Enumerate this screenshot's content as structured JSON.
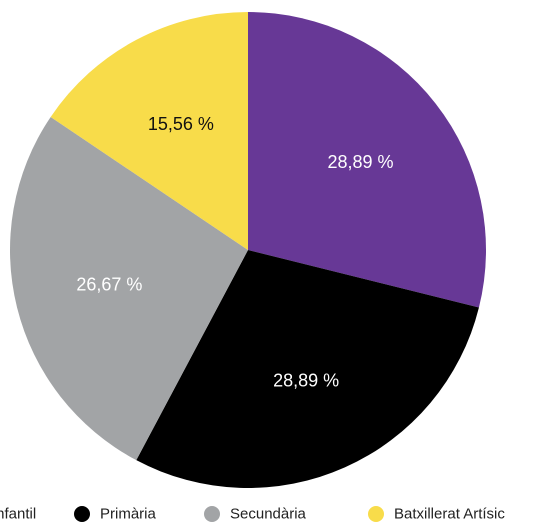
{
  "chart_data": {
    "type": "pie",
    "start_angle_deg": 0,
    "direction": "clockwise",
    "slices": [
      {
        "name": "Infantil",
        "value": 28.89,
        "label": "28,89 %",
        "color": "#673896",
        "label_color": "#ffffff"
      },
      {
        "name": "Primària",
        "value": 28.89,
        "label": "28,89 %",
        "color": "#000000",
        "label_color": "#ffffff"
      },
      {
        "name": "Secundària",
        "value": 26.67,
        "label": "26,67 %",
        "color": "#a2a4a6",
        "label_color": "#ffffff"
      },
      {
        "name": "Batxillerat Artísic",
        "value": 15.56,
        "label": "15,56 %",
        "color": "#f8dc4a",
        "label_color": "#111111"
      }
    ],
    "legend": {
      "placement": "bottom",
      "items": [
        {
          "label": "Infantil",
          "color": "#673896"
        },
        {
          "label": "Primària",
          "color": "#000000"
        },
        {
          "label": "Secundària",
          "color": "#a2a4a6"
        },
        {
          "label": "Batxillerat Artísic",
          "color": "#f8dc4a"
        }
      ]
    }
  }
}
